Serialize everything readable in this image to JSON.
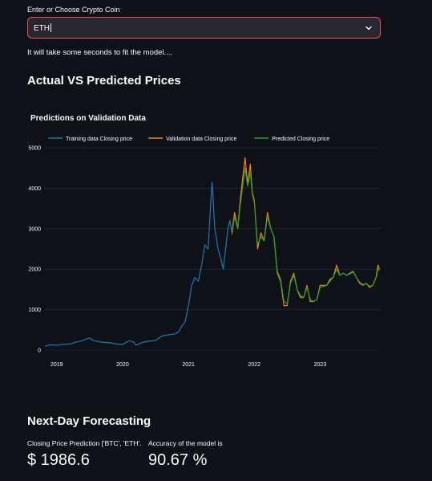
{
  "input": {
    "label": "Enter or Choose Crypto Coin",
    "value": "ETH"
  },
  "status": "It will take some seconds to fit the model....",
  "sections": {
    "actual_vs_predicted": "Actual VS Predicted Prices",
    "forecasting": "Next-Day Forecasting"
  },
  "metrics": {
    "prediction_label": "Closing Price Prediction ['BTC', 'ETH'...",
    "prediction_value": "$ 1986.6",
    "accuracy_label": "Accuracy of the model is",
    "accuracy_value": "90.67 %"
  },
  "colors": {
    "background": "#0e1117",
    "input_border": "#ff4b4b",
    "training": "#1f77b4",
    "validation": "#ff7f0e",
    "predicted": "#2ca02c"
  },
  "chart_data": {
    "type": "line",
    "title": "Predictions on Validation Data",
    "legend_position": "top",
    "grid": true,
    "xlim": [
      2018.82,
      2023.92
    ],
    "ylim": [
      0,
      5000
    ],
    "x_ticks": [
      "2019",
      "2020",
      "2021",
      "2022",
      "2023"
    ],
    "x_tick_values": [
      2019,
      2020,
      2021,
      2022,
      2023
    ],
    "y_ticks": [
      0,
      1000,
      2000,
      3000,
      4000,
      5000
    ],
    "series": [
      {
        "name": "Training data Closing price",
        "color": "#1f77b4",
        "points": [
          [
            2018.82,
            100
          ],
          [
            2018.9,
            130
          ],
          [
            2019.0,
            120
          ],
          [
            2019.1,
            145
          ],
          [
            2019.2,
            150
          ],
          [
            2019.3,
            200
          ],
          [
            2019.4,
            240
          ],
          [
            2019.45,
            280
          ],
          [
            2019.5,
            300
          ],
          [
            2019.55,
            240
          ],
          [
            2019.6,
            220
          ],
          [
            2019.7,
            190
          ],
          [
            2019.8,
            180
          ],
          [
            2019.9,
            150
          ],
          [
            2020.0,
            140
          ],
          [
            2020.1,
            230
          ],
          [
            2020.17,
            200
          ],
          [
            2020.2,
            120
          ],
          [
            2020.3,
            190
          ],
          [
            2020.4,
            220
          ],
          [
            2020.5,
            240
          ],
          [
            2020.6,
            350
          ],
          [
            2020.7,
            380
          ],
          [
            2020.8,
            400
          ],
          [
            2020.85,
            450
          ],
          [
            2020.9,
            600
          ],
          [
            2020.95,
            700
          ],
          [
            2021.0,
            1100
          ],
          [
            2021.05,
            1600
          ],
          [
            2021.1,
            1800
          ],
          [
            2021.15,
            1700
          ],
          [
            2021.2,
            2100
          ],
          [
            2021.25,
            2600
          ],
          [
            2021.3,
            2500
          ],
          [
            2021.33,
            3400
          ],
          [
            2021.36,
            4150
          ],
          [
            2021.4,
            3000
          ],
          [
            2021.45,
            2500
          ],
          [
            2021.5,
            2200
          ],
          [
            2021.53,
            2000
          ],
          [
            2021.55,
            2300
          ],
          [
            2021.6,
            3000
          ],
          [
            2021.63,
            3200
          ],
          [
            2021.66,
            2900
          ]
        ]
      },
      {
        "name": "Validation data Closing price",
        "color": "#ff7f0e",
        "points": [
          [
            2021.66,
            2900
          ],
          [
            2021.7,
            3400
          ],
          [
            2021.75,
            3000
          ],
          [
            2021.78,
            3600
          ],
          [
            2021.82,
            4200
          ],
          [
            2021.86,
            4750
          ],
          [
            2021.9,
            4100
          ],
          [
            2021.94,
            4600
          ],
          [
            2021.97,
            3900
          ],
          [
            2022.0,
            3700
          ],
          [
            2022.05,
            2500
          ],
          [
            2022.1,
            2900
          ],
          [
            2022.15,
            2700
          ],
          [
            2022.2,
            3400
          ],
          [
            2022.25,
            3000
          ],
          [
            2022.3,
            2800
          ],
          [
            2022.35,
            1900
          ],
          [
            2022.4,
            1700
          ],
          [
            2022.45,
            1100
          ],
          [
            2022.5,
            1100
          ],
          [
            2022.55,
            1700
          ],
          [
            2022.6,
            1900
          ],
          [
            2022.65,
            1500
          ],
          [
            2022.7,
            1300
          ],
          [
            2022.75,
            1300
          ],
          [
            2022.8,
            1600
          ],
          [
            2022.85,
            1200
          ],
          [
            2022.9,
            1200
          ],
          [
            2022.95,
            1250
          ],
          [
            2023.0,
            1600
          ],
          [
            2023.1,
            1600
          ],
          [
            2023.15,
            1750
          ],
          [
            2023.2,
            1800
          ],
          [
            2023.25,
            2100
          ],
          [
            2023.3,
            1850
          ],
          [
            2023.35,
            1900
          ],
          [
            2023.4,
            1850
          ],
          [
            2023.45,
            1900
          ],
          [
            2023.5,
            1950
          ],
          [
            2023.55,
            1800
          ],
          [
            2023.6,
            1650
          ],
          [
            2023.65,
            1600
          ],
          [
            2023.7,
            1650
          ],
          [
            2023.75,
            1550
          ],
          [
            2023.8,
            1600
          ],
          [
            2023.85,
            1800
          ],
          [
            2023.88,
            2100
          ],
          [
            2023.9,
            2000
          ]
        ]
      },
      {
        "name": "Predicted Closing price",
        "color": "#2ca02c",
        "points": [
          [
            2021.66,
            2850
          ],
          [
            2021.7,
            3300
          ],
          [
            2021.75,
            3000
          ],
          [
            2021.78,
            3500
          ],
          [
            2021.82,
            4000
          ],
          [
            2021.86,
            4500
          ],
          [
            2021.9,
            4050
          ],
          [
            2021.94,
            4400
          ],
          [
            2021.97,
            3850
          ],
          [
            2022.0,
            3650
          ],
          [
            2022.05,
            2600
          ],
          [
            2022.1,
            2800
          ],
          [
            2022.15,
            2700
          ],
          [
            2022.2,
            3300
          ],
          [
            2022.25,
            3000
          ],
          [
            2022.3,
            2800
          ],
          [
            2022.35,
            1950
          ],
          [
            2022.4,
            1750
          ],
          [
            2022.45,
            1200
          ],
          [
            2022.5,
            1150
          ],
          [
            2022.55,
            1650
          ],
          [
            2022.6,
            1850
          ],
          [
            2022.65,
            1500
          ],
          [
            2022.7,
            1350
          ],
          [
            2022.75,
            1300
          ],
          [
            2022.8,
            1550
          ],
          [
            2022.85,
            1250
          ],
          [
            2022.9,
            1200
          ],
          [
            2022.95,
            1250
          ],
          [
            2023.0,
            1550
          ],
          [
            2023.1,
            1600
          ],
          [
            2023.15,
            1700
          ],
          [
            2023.2,
            1800
          ],
          [
            2023.25,
            2000
          ],
          [
            2023.3,
            1850
          ],
          [
            2023.35,
            1900
          ],
          [
            2023.4,
            1850
          ],
          [
            2023.45,
            1880
          ],
          [
            2023.5,
            1930
          ],
          [
            2023.55,
            1800
          ],
          [
            2023.6,
            1680
          ],
          [
            2023.65,
            1620
          ],
          [
            2023.7,
            1650
          ],
          [
            2023.75,
            1580
          ],
          [
            2023.8,
            1600
          ],
          [
            2023.85,
            1780
          ],
          [
            2023.88,
            2000
          ],
          [
            2023.9,
            1980
          ]
        ]
      }
    ]
  }
}
